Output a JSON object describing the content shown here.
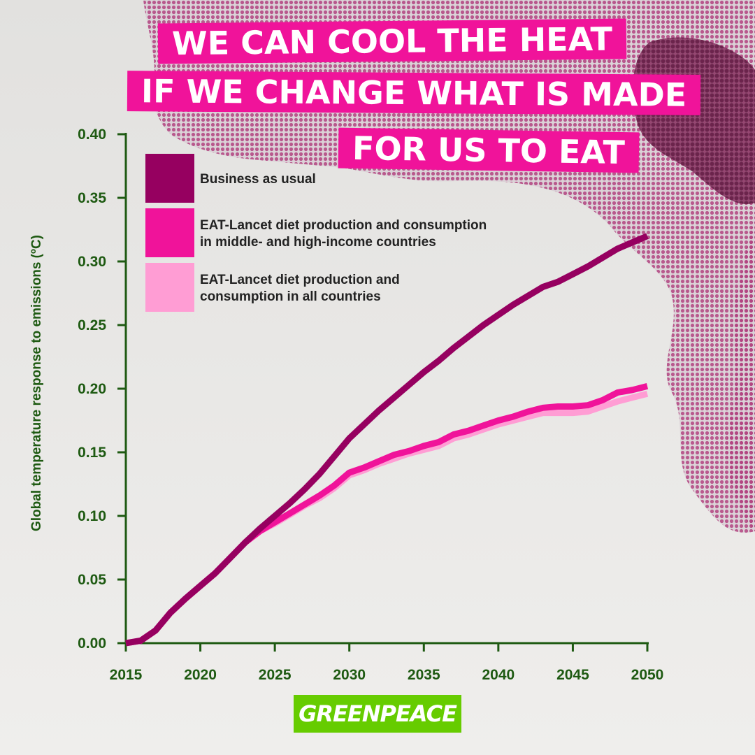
{
  "headline": {
    "line1": "WE CAN COOL THE HEAT",
    "line2": "IF WE CHANGE WHAT IS MADE",
    "line3": "FOR US TO EAT"
  },
  "logo": {
    "text": "GREENPEACE"
  },
  "colors": {
    "axis": "#1e5a12",
    "business_as_usual": "#960060",
    "mid_high_income": "#f0139a",
    "all_countries": "#ff9dd4",
    "headline_bg": "#f0139a",
    "logo_bg": "#66cc00"
  },
  "chart_data": {
    "type": "line",
    "title": "",
    "xlabel": "",
    "ylabel": "Global temperature response to emissions (ºC)",
    "xlim": [
      2015,
      2050
    ],
    "ylim": [
      0,
      0.4
    ],
    "x_ticks": [
      "2015",
      "2020",
      "2025",
      "2030",
      "2035",
      "2040",
      "2045",
      "2050"
    ],
    "y_ticks": [
      "0.00",
      "0.05",
      "0.10",
      "0.15",
      "0.20",
      "0.25",
      "0.30",
      "0.35",
      "0.40"
    ],
    "legend_position": "top-left",
    "x": [
      2015,
      2016,
      2017,
      2018,
      2019,
      2020,
      2021,
      2022,
      2023,
      2024,
      2025,
      2026,
      2027,
      2028,
      2029,
      2030,
      2031,
      2032,
      2033,
      2034,
      2035,
      2036,
      2037,
      2038,
      2039,
      2040,
      2041,
      2042,
      2043,
      2044,
      2045,
      2046,
      2047,
      2048,
      2049,
      2050
    ],
    "series": [
      {
        "name": "Business as usual",
        "color": "#960060",
        "values": [
          0.0,
          0.002,
          0.01,
          0.024,
          0.035,
          0.045,
          0.055,
          0.067,
          0.079,
          0.09,
          0.1,
          0.11,
          0.121,
          0.133,
          0.147,
          0.161,
          0.172,
          0.183,
          0.193,
          0.203,
          0.213,
          0.222,
          0.232,
          0.241,
          0.25,
          0.258,
          0.266,
          0.273,
          0.28,
          0.284,
          0.29,
          0.296,
          0.303,
          0.31,
          0.315,
          0.32
        ]
      },
      {
        "name": "EAT-Lancet diet production and consumption in middle- and high-income countries",
        "color": "#f0139a",
        "values": [
          0.0,
          0.002,
          0.01,
          0.024,
          0.035,
          0.045,
          0.055,
          0.067,
          0.079,
          0.088,
          0.095,
          0.102,
          0.109,
          0.116,
          0.124,
          0.134,
          0.138,
          0.143,
          0.148,
          0.151,
          0.155,
          0.158,
          0.164,
          0.167,
          0.171,
          0.175,
          0.178,
          0.182,
          0.185,
          0.186,
          0.186,
          0.187,
          0.191,
          0.197,
          0.199,
          0.202
        ]
      },
      {
        "name": "EAT-Lancet diet production and consumption in all countries",
        "color": "#ff9dd4",
        "values": [
          0.0,
          0.002,
          0.01,
          0.024,
          0.035,
          0.045,
          0.055,
          0.067,
          0.079,
          0.088,
          0.094,
          0.101,
          0.108,
          0.114,
          0.122,
          0.132,
          0.136,
          0.141,
          0.145,
          0.149,
          0.152,
          0.155,
          0.161,
          0.164,
          0.168,
          0.172,
          0.175,
          0.178,
          0.181,
          0.181,
          0.181,
          0.182,
          0.186,
          0.19,
          0.193,
          0.196
        ]
      }
    ],
    "legend": [
      {
        "lines": [
          "Business as usual"
        ]
      },
      {
        "lines": [
          "EAT-Lancet diet production and consumption",
          "in middle- and high-income countries"
        ]
      },
      {
        "lines": [
          "EAT-Lancet diet production and",
          "consumption in all countries"
        ]
      }
    ]
  }
}
